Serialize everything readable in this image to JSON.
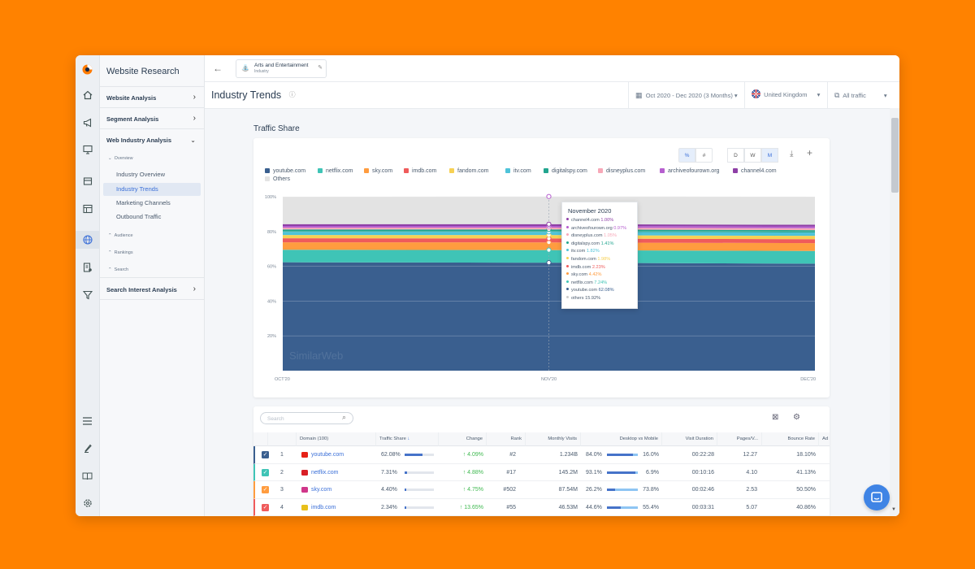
{
  "app": {
    "nav_title": "Website Research",
    "breadcrumb": {
      "title": "Arts and Entertainment",
      "subtitle": "Industry"
    },
    "page_title": "Industry Trends"
  },
  "nav": {
    "website_analysis": "Website Analysis",
    "segment_analysis": "Segment Analysis",
    "web_industry_analysis": "Web Industry Analysis",
    "overview": "Overview",
    "industry_overview": "Industry Overview",
    "industry_trends": "Industry Trends",
    "marketing_channels": "Marketing Channels",
    "outbound_traffic": "Outbound Traffic",
    "audience": "Audience",
    "rankings": "Rankings",
    "search": "Search",
    "search_interest_analysis": "Search Interest Analysis"
  },
  "filters": {
    "date_range": "Oct 2020 - Dec 2020 (3 Months)",
    "country": "United Kingdom",
    "traffic": "All traffic"
  },
  "section_title": "Traffic Share",
  "toolbar": {
    "percent": "%",
    "number": "#",
    "day": "D",
    "week": "W",
    "month": "M"
  },
  "colors": {
    "youtube": "#3a5f8f",
    "netflix": "#3fc4b6",
    "sky": "#ff9c3f",
    "imdb": "#ef5b5b",
    "fandom": "#f7d154",
    "itv": "#4fc3d9",
    "digitalspy": "#22a58f",
    "disneyplus": "#f7a8b8",
    "archiveofourown": "#b65fcf",
    "channel4": "#8e3fa6",
    "others": "#e3e3e3"
  },
  "chart_data": {
    "type": "area",
    "x": [
      "OCT'20",
      "NOV'20",
      "DEC'20"
    ],
    "y_ticks": [
      "20%",
      "40%",
      "60%",
      "80%",
      "100%"
    ],
    "ylim": [
      0,
      100
    ],
    "watermark": "SimilarWeb",
    "legend": [
      "youtube.com",
      "netflix.com",
      "sky.com",
      "imdb.com",
      "fandom.com",
      "itv.com",
      "digitalspy.com",
      "disneyplus.com",
      "archiveofourown.org",
      "channel4.com",
      "Others"
    ],
    "series": [
      {
        "name": "youtube.com",
        "color": "#3a5f8f",
        "values": [
          62.3,
          62.08,
          61.5
        ]
      },
      {
        "name": "netflix.com",
        "color": "#3fc4b6",
        "values": [
          7.2,
          7.24,
          7.3
        ]
      },
      {
        "name": "sky.com",
        "color": "#ff9c3f",
        "values": [
          4.3,
          4.42,
          4.5
        ]
      },
      {
        "name": "imdb.com",
        "color": "#ef5b5b",
        "values": [
          2.3,
          2.23,
          2.3
        ]
      },
      {
        "name": "fandom.com",
        "color": "#f7d154",
        "values": [
          1.9,
          1.98,
          1.9
        ]
      },
      {
        "name": "itv.com",
        "color": "#4fc3d9",
        "values": [
          1.8,
          1.82,
          1.9
        ]
      },
      {
        "name": "digitalspy.com",
        "color": "#22a58f",
        "values": [
          1.4,
          1.41,
          1.4
        ]
      },
      {
        "name": "disneyplus.com",
        "color": "#f7a8b8",
        "values": [
          1.0,
          1.05,
          1.1
        ]
      },
      {
        "name": "archiveofourown.org",
        "color": "#b65fcf",
        "values": [
          1.0,
          0.97,
          1.0
        ]
      },
      {
        "name": "channel4.com",
        "color": "#8e3fa6",
        "values": [
          1.0,
          1.0,
          1.0
        ]
      },
      {
        "name": "Others",
        "color": "#e3e3e3",
        "values": [
          15.8,
          15.92,
          16.1
        ]
      }
    ],
    "tooltip": {
      "title": "November 2020",
      "rows": [
        {
          "name": "channel4.com",
          "value": "1.00%",
          "color": "#8e3fa6"
        },
        {
          "name": "archiveofourown.org",
          "value": "0.97%",
          "color": "#b65fcf"
        },
        {
          "name": "disneyplus.com",
          "value": "1.05%",
          "color": "#f7a8b8"
        },
        {
          "name": "digitalspy.com",
          "value": "1.41%",
          "color": "#22a58f"
        },
        {
          "name": "itv.com",
          "value": "1.82%",
          "color": "#4fc3d9"
        },
        {
          "name": "fandom.com",
          "value": "1.98%",
          "color": "#f7d154"
        },
        {
          "name": "imdb.com",
          "value": "2.23%",
          "color": "#ef5b5b"
        },
        {
          "name": "sky.com",
          "value": "4.42%",
          "color": "#ff9c3f"
        },
        {
          "name": "netflix.com",
          "value": "7.24%",
          "color": "#3fc4b6"
        },
        {
          "name": "youtube.com",
          "value": "62.08%",
          "color": "#3a5f8f"
        },
        {
          "name": "others",
          "value": "15.92%",
          "color": "#cccccc"
        }
      ]
    }
  },
  "table": {
    "search_placeholder": "Search",
    "headers": {
      "domain": "Domain (100)",
      "traffic_share": "Traffic Share",
      "change": "Change",
      "rank": "Rank",
      "monthly_visits": "Monthly Visits",
      "desktop_mobile": "Desktop vs Mobile",
      "visit_duration": "Visit Duration",
      "pages": "Pages/V...",
      "bounce": "Bounce Rate",
      "more": "Ad"
    },
    "rows": [
      {
        "num": "1",
        "domain": "youtube.com",
        "share": "62.08%",
        "share_frac": 0.62,
        "change": "4.09%",
        "rank": "#2",
        "visits": "1.234B",
        "desktop": "84.0%",
        "desktop_frac": 0.84,
        "mobile": "16.0%",
        "duration": "00:22:28",
        "pages": "12.27",
        "bounce": "18.10%",
        "color": "#3a5f8f",
        "favicon": "youtube-icon",
        "fav_color": "#e62117"
      },
      {
        "num": "2",
        "domain": "netflix.com",
        "share": "7.31%",
        "share_frac": 0.073,
        "change": "4.88%",
        "rank": "#17",
        "visits": "145.2M",
        "desktop": "93.1%",
        "desktop_frac": 0.931,
        "mobile": "6.9%",
        "duration": "00:10:16",
        "pages": "4.10",
        "bounce": "41.13%",
        "color": "#3fc4b6",
        "favicon": "netflix-icon",
        "fav_color": "#d81f26"
      },
      {
        "num": "3",
        "domain": "sky.com",
        "share": "4.40%",
        "share_frac": 0.044,
        "change": "4.75%",
        "rank": "#502",
        "visits": "87.54M",
        "desktop": "26.2%",
        "desktop_frac": 0.262,
        "mobile": "73.8%",
        "duration": "00:02:46",
        "pages": "2.53",
        "bounce": "50.50%",
        "color": "#ff9c3f",
        "favicon": "sky-icon",
        "fav_color": "#d0368a"
      },
      {
        "num": "4",
        "domain": "imdb.com",
        "share": "2.34%",
        "share_frac": 0.023,
        "change": "13.65%",
        "rank": "#55",
        "visits": "46.53M",
        "desktop": "44.6%",
        "desktop_frac": 0.446,
        "mobile": "55.4%",
        "duration": "00:03:31",
        "pages": "5.07",
        "bounce": "40.86%",
        "color": "#ef5b5b",
        "favicon": "imdb-icon",
        "fav_color": "#e8c01b"
      }
    ]
  }
}
